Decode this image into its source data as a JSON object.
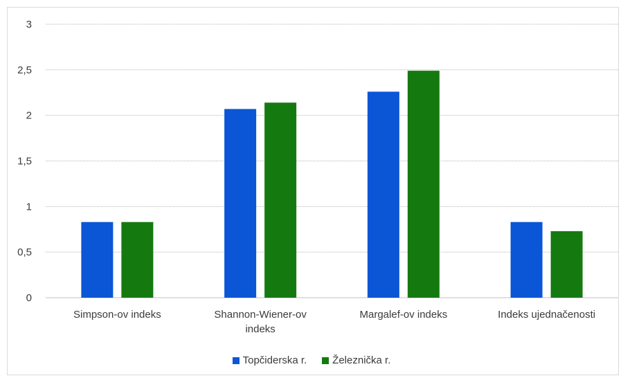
{
  "chart_data": {
    "type": "bar",
    "categories": [
      "Simpson-ov indeks",
      "Shannon-Wiener-ov indeks",
      "Margalef-ov indeks",
      "Indeks ujednačenosti"
    ],
    "series": [
      {
        "name": "Topčiderska r.",
        "color": "#0a56d6",
        "values": [
          0.83,
          2.07,
          2.26,
          0.83
        ]
      },
      {
        "name": "Železnička r.",
        "color": "#147a10",
        "values": [
          0.83,
          2.14,
          2.49,
          0.73
        ]
      }
    ],
    "ylim": [
      0,
      3
    ],
    "yticks": [
      {
        "value": 0,
        "label": "0"
      },
      {
        "value": 0.5,
        "label": "0,5"
      },
      {
        "value": 1,
        "label": "1"
      },
      {
        "value": 1.5,
        "label": "1,5"
      },
      {
        "value": 2,
        "label": "2"
      },
      {
        "value": 2.5,
        "label": "2,5"
      },
      {
        "value": 3,
        "label": "3"
      }
    ],
    "grid": true,
    "legend_position": "bottom"
  }
}
